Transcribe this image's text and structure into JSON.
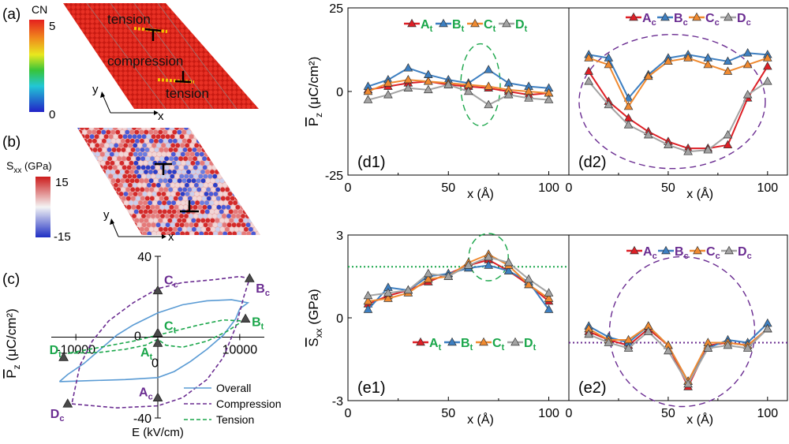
{
  "colors": {
    "A": "#dd1f26",
    "B": "#3d7fc1",
    "C": "#f08a30",
    "D": "#a3a3a3",
    "green": "#1aa64a",
    "purple": "#6a2c91",
    "overall": "#5a9bd4"
  },
  "panel_labels": {
    "a": "(a)",
    "b": "(b)",
    "c": "(c)",
    "d1": "(d1)",
    "d2": "(d2)",
    "e1": "(e1)",
    "e2": "(e2)"
  },
  "panel_a": {
    "colorbar_title": "CN",
    "cb_max": "5",
    "cb_min": "0",
    "tension_top": "tension",
    "compression": "compression",
    "tension_bottom": "tension",
    "axis_x": "x",
    "axis_y": "y"
  },
  "panel_b": {
    "colorbar_title_main": "S",
    "colorbar_title_sub": "xx",
    "colorbar_title_unit": " (GPa)",
    "cb_max": "15",
    "cb_min": "-15",
    "axis_x": "x",
    "axis_y": "y"
  },
  "chart_data": [
    {
      "panel": "c",
      "type": "line",
      "xlabel": "E (kV/cm)",
      "ylabel_main": "P",
      "ylabel_sub": "z",
      "ylabel_unit": " (μC/cm²)",
      "xlim": [
        -13000,
        13000
      ],
      "ylim": [
        -40,
        40
      ],
      "x_ticks": [
        {
          "v": -10000,
          "label": "-10000"
        },
        {
          "v": 10000,
          "label": "10000"
        }
      ],
      "y_ticks": [
        {
          "v": 40,
          "label": "40"
        },
        {
          "v": -40,
          "label": "-40"
        }
      ],
      "zero_label": "0",
      "legend": [
        {
          "name": "Overall",
          "style": "solid",
          "color": "#5a9bd4"
        },
        {
          "name": "Compression",
          "style": "dashed",
          "color": "#6a2c91"
        },
        {
          "name": "Tension",
          "style": "dashed",
          "color": "#1aa64a"
        }
      ],
      "series": [
        {
          "name": "Overall",
          "color": "#5a9bd4",
          "dash": "",
          "points": [
            [
              -12000,
              -22
            ],
            [
              -8000,
              -21.5
            ],
            [
              -4000,
              -21
            ],
            [
              0,
              -20
            ],
            [
              2000,
              -17
            ],
            [
              4000,
              -12
            ],
            [
              6000,
              -6
            ],
            [
              8000,
              1
            ],
            [
              9500,
              9
            ],
            [
              10000,
              14
            ],
            [
              11000,
              17
            ],
            [
              9000,
              18.5
            ],
            [
              6000,
              18
            ],
            [
              3000,
              16
            ],
            [
              0,
              12
            ],
            [
              -3000,
              6
            ],
            [
              -5000,
              1
            ],
            [
              -7000,
              -6
            ],
            [
              -9000,
              -13
            ],
            [
              -11000,
              -18.5
            ],
            [
              -12000,
              -22
            ]
          ]
        },
        {
          "name": "Compression",
          "color": "#6a2c91",
          "dash": "5,3",
          "points": [
            [
              -10500,
              -33
            ],
            [
              -5000,
              -35
            ],
            [
              0,
              -34
            ],
            [
              3000,
              -30
            ],
            [
              6000,
              -21
            ],
            [
              8000,
              -10
            ],
            [
              9500,
              5
            ],
            [
              10500,
              20
            ],
            [
              11200,
              29
            ],
            [
              10000,
              30
            ],
            [
              7000,
              28.5
            ],
            [
              3000,
              27
            ],
            [
              0,
              24
            ],
            [
              -3000,
              17
            ],
            [
              -6000,
              8
            ],
            [
              -8000,
              -2
            ],
            [
              -9500,
              -14
            ],
            [
              -10500,
              -33
            ]
          ]
        },
        {
          "name": "Tension",
          "color": "#1aa64a",
          "dash": "5,3",
          "points": [
            [
              -11000,
              -8
            ],
            [
              -7000,
              -7.5
            ],
            [
              -4000,
              -6
            ],
            [
              -1500,
              -4
            ],
            [
              0,
              -1
            ],
            [
              1000,
              -4
            ],
            [
              3000,
              -5
            ],
            [
              6000,
              -2
            ],
            [
              8500,
              3
            ],
            [
              10000,
              7
            ],
            [
              10500,
              8
            ],
            [
              8000,
              8.5
            ],
            [
              5000,
              6
            ],
            [
              2000,
              3
            ],
            [
              0,
              1
            ],
            [
              -3000,
              -2
            ],
            [
              -7000,
              -5
            ],
            [
              -11000,
              -8
            ]
          ]
        }
      ],
      "markers": [
        {
          "label": "A",
          "sub": "t",
          "x": 0,
          "y": -3,
          "color": "#1aa64a",
          "lx": -22,
          "ly": 17
        },
        {
          "label": "B",
          "sub": "t",
          "x": 10700,
          "y": 9,
          "color": "#1aa64a",
          "lx": 8,
          "ly": 9
        },
        {
          "label": "C",
          "sub": "t",
          "x": 0,
          "y": 2,
          "color": "#1aa64a",
          "lx": 8,
          "ly": -4
        },
        {
          "label": "D",
          "sub": "t",
          "x": -11500,
          "y": -10,
          "color": "#1aa64a",
          "lx": -18,
          "ly": -4
        },
        {
          "label": "A",
          "sub": "c",
          "x": 0,
          "y": -30,
          "color": "#6a2c91",
          "lx": -24,
          "ly": -2
        },
        {
          "label": "B",
          "sub": "c",
          "x": 11200,
          "y": 29,
          "color": "#6a2c91",
          "lx": 8,
          "ly": 18
        },
        {
          "label": "C",
          "sub": "c",
          "x": 0,
          "y": 23,
          "color": "#6a2c91",
          "lx": 8,
          "ly": -8
        },
        {
          "label": "D",
          "sub": "c",
          "x": -11000,
          "y": -33,
          "color": "#6a2c91",
          "lx": -22,
          "ly": 18
        }
      ]
    },
    {
      "panel": "d1",
      "type": "line",
      "xlim": [
        0,
        110
      ],
      "ylim": [
        -25,
        25
      ],
      "x_ticks": [
        {
          "v": 0,
          "label": "0"
        },
        {
          "v": 50,
          "label": "50"
        },
        {
          "v": 100,
          "label": "100"
        }
      ],
      "y_ticks": [
        {
          "v": 25,
          "label": "25"
        },
        {
          "v": 0,
          "label": "0"
        },
        {
          "v": -25,
          "label": "-25"
        }
      ],
      "ylabel_main": "P",
      "ylabel_sub": "z",
      "ylabel_unit": " (μC/cm²)",
      "xlabel": "x (Å)",
      "legend_sub": "t",
      "legend_color": "#1aa64a",
      "series": [
        {
          "name": "A",
          "x": [
            10,
            20,
            30,
            40,
            50,
            60,
            70,
            80,
            90,
            100
          ],
          "y": [
            0.5,
            1.5,
            2.5,
            3,
            2,
            1.5,
            1,
            0,
            -1,
            -0.5
          ]
        },
        {
          "name": "B",
          "x": [
            10,
            20,
            30,
            40,
            50,
            60,
            70,
            80,
            90,
            100
          ],
          "y": [
            1.5,
            3.5,
            7,
            5,
            3.5,
            2.5,
            6.5,
            2.5,
            1.5,
            1
          ]
        },
        {
          "name": "C",
          "x": [
            10,
            20,
            30,
            40,
            50,
            60,
            70,
            80,
            90,
            100
          ],
          "y": [
            0,
            2.5,
            3.5,
            3,
            2.5,
            2,
            1.5,
            0.5,
            0,
            -0.5
          ]
        },
        {
          "name": "D",
          "x": [
            10,
            20,
            30,
            40,
            50,
            60,
            70,
            80,
            90,
            100
          ],
          "y": [
            -2.5,
            -1,
            1,
            0.5,
            2,
            0,
            -4,
            -1,
            -2,
            -2.5
          ]
        }
      ]
    },
    {
      "panel": "d2",
      "type": "line",
      "xlim": [
        0,
        110
      ],
      "ylim": [
        -25,
        25
      ],
      "x_ticks": [
        {
          "v": 0,
          "label": "0"
        },
        {
          "v": 50,
          "label": "50"
        },
        {
          "v": 100,
          "label": "100"
        }
      ],
      "xlabel": "x (Å)",
      "legend_sub": "c",
      "legend_color": "#6a2c91",
      "series": [
        {
          "name": "A",
          "x": [
            10,
            20,
            30,
            40,
            50,
            60,
            70,
            80,
            90,
            100
          ],
          "y": [
            6,
            -3,
            -8,
            -12,
            -15,
            -17,
            -17,
            -16,
            -2,
            7.5
          ]
        },
        {
          "name": "B",
          "x": [
            10,
            20,
            30,
            40,
            50,
            60,
            70,
            80,
            90,
            100
          ],
          "y": [
            11,
            10,
            -2,
            5,
            10,
            11,
            10,
            9,
            11.5,
            11
          ]
        },
        {
          "name": "C",
          "x": [
            10,
            20,
            30,
            40,
            50,
            60,
            70,
            80,
            90,
            100
          ],
          "y": [
            10,
            8,
            -4.5,
            4.5,
            9,
            10,
            8,
            6,
            8,
            10
          ]
        },
        {
          "name": "D",
          "x": [
            10,
            20,
            30,
            40,
            50,
            60,
            70,
            80,
            90,
            100
          ],
          "y": [
            3,
            -4,
            -10,
            -13,
            -16,
            -18,
            -17.5,
            -13,
            -1,
            3
          ]
        }
      ]
    },
    {
      "panel": "e1",
      "type": "line",
      "xlim": [
        0,
        110
      ],
      "ylim": [
        -3,
        3
      ],
      "x_ticks": [
        {
          "v": 0,
          "label": "0"
        },
        {
          "v": 50,
          "label": "50"
        },
        {
          "v": 100,
          "label": "100"
        }
      ],
      "y_ticks": [
        {
          "v": 3,
          "label": "3"
        },
        {
          "v": 0,
          "label": "0"
        },
        {
          "v": -3,
          "label": "-3"
        }
      ],
      "ylabel_main": "S",
      "ylabel_sub": "xx",
      "ylabel_unit": " (GPa)",
      "xlabel": "x (Å)",
      "reference_line": 1.85,
      "legend_sub": "t",
      "legend_color": "#1aa64a",
      "series": [
        {
          "name": "A",
          "x": [
            10,
            20,
            30,
            40,
            50,
            60,
            70,
            80,
            90,
            100
          ],
          "y": [
            0.5,
            0.8,
            1.0,
            1.3,
            1.6,
            1.9,
            2.1,
            1.7,
            1.2,
            0.6
          ]
        },
        {
          "name": "B",
          "x": [
            10,
            20,
            30,
            40,
            50,
            60,
            70,
            80,
            90,
            100
          ],
          "y": [
            0.3,
            1.1,
            1.0,
            1.5,
            1.6,
            1.8,
            1.9,
            1.7,
            1.3,
            0.3
          ]
        },
        {
          "name": "C",
          "x": [
            10,
            20,
            30,
            40,
            50,
            60,
            70,
            80,
            90,
            100
          ],
          "y": [
            0.6,
            0.7,
            0.9,
            1.4,
            1.5,
            2.0,
            2.3,
            1.9,
            1.2,
            0.7
          ]
        },
        {
          "name": "D",
          "x": [
            10,
            20,
            30,
            40,
            50,
            60,
            70,
            80,
            90,
            100
          ],
          "y": [
            0.8,
            0.9,
            1.0,
            1.6,
            1.5,
            1.9,
            2.2,
            2.0,
            1.4,
            0.9
          ]
        }
      ]
    },
    {
      "panel": "e2",
      "type": "line",
      "xlim": [
        0,
        110
      ],
      "ylim": [
        -3,
        3
      ],
      "x_ticks": [
        {
          "v": 0,
          "label": "0"
        },
        {
          "v": 50,
          "label": "50"
        },
        {
          "v": 100,
          "label": "100"
        }
      ],
      "xlabel": "x (Å)",
      "reference_line": -0.9,
      "legend_sub": "c",
      "legend_color": "#6a2c91",
      "series": [
        {
          "name": "A",
          "x": [
            10,
            20,
            30,
            40,
            50,
            60,
            70,
            80,
            90,
            100
          ],
          "y": [
            -0.5,
            -0.8,
            -1.0,
            -0.4,
            -1.0,
            -2.5,
            -1.0,
            -0.9,
            -1.0,
            -0.4
          ]
        },
        {
          "name": "B",
          "x": [
            10,
            20,
            30,
            40,
            50,
            60,
            70,
            80,
            90,
            100
          ],
          "y": [
            -0.3,
            -0.7,
            -0.9,
            -0.3,
            -1.0,
            -2.3,
            -1.1,
            -0.8,
            -0.9,
            -0.2
          ]
        },
        {
          "name": "C",
          "x": [
            10,
            20,
            30,
            40,
            50,
            60,
            70,
            80,
            90,
            100
          ],
          "y": [
            -0.4,
            -0.8,
            -0.8,
            -0.3,
            -1.0,
            -2.3,
            -0.9,
            -0.9,
            -1.0,
            -0.4
          ]
        },
        {
          "name": "D",
          "x": [
            10,
            20,
            30,
            40,
            50,
            60,
            70,
            80,
            90,
            100
          ],
          "y": [
            -0.6,
            -0.9,
            -1.1,
            -0.5,
            -1.2,
            -2.4,
            -1.1,
            -1.0,
            -1.1,
            -0.4
          ]
        }
      ]
    }
  ]
}
